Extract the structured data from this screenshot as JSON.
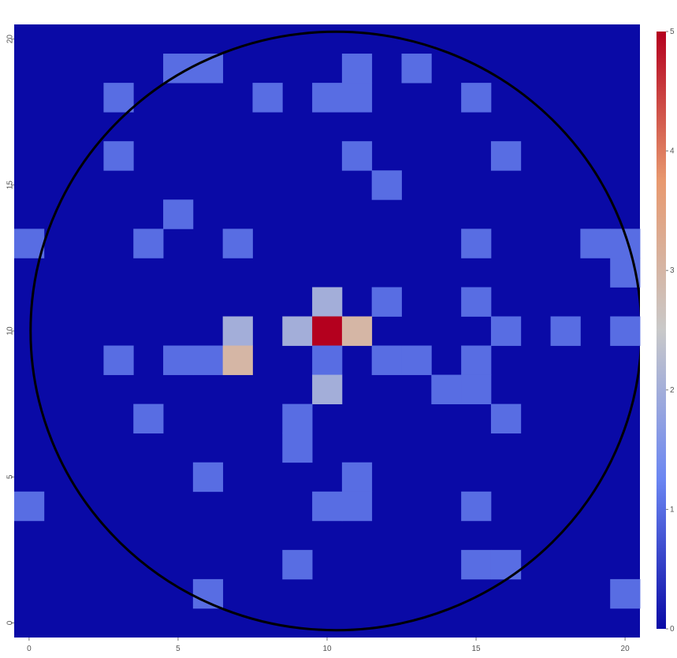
{
  "chart_data": {
    "type": "heatmap",
    "title": "",
    "xlabel": "",
    "ylabel": "",
    "x_range": [
      -0.5,
      20.5
    ],
    "y_range": [
      -0.5,
      20.5
    ],
    "x_ticks": [
      0,
      5,
      10,
      15,
      20
    ],
    "y_ticks": [
      0,
      5,
      10,
      15,
      20
    ],
    "x_tick_labels": [
      "0",
      "5",
      "10",
      "15",
      "20"
    ],
    "y_tick_labels": [
      "0",
      "5",
      "10",
      "15",
      "20"
    ],
    "grid": false,
    "colorscale": [
      "#0a0aa6",
      "#6b86f2",
      "#c9c9c9",
      "#e8996f",
      "#b4001e"
    ],
    "colorbar": {
      "range": [
        0,
        5
      ],
      "ticks": [
        0,
        1,
        2,
        3,
        4,
        5
      ],
      "tick_labels": [
        "0",
        "1",
        "2",
        "3",
        "4",
        "5"
      ],
      "placement": "right"
    },
    "circle": {
      "center_x": 10.3,
      "center_y": 10,
      "radius": 10.25,
      "color": "#000000"
    },
    "cells": [
      [
        5,
        19,
        1
      ],
      [
        6,
        19,
        1
      ],
      [
        11,
        19,
        1
      ],
      [
        13,
        19,
        1
      ],
      [
        3,
        18,
        1
      ],
      [
        8,
        18,
        1
      ],
      [
        10,
        18,
        1
      ],
      [
        11,
        18,
        1
      ],
      [
        15,
        18,
        1
      ],
      [
        3,
        16,
        1
      ],
      [
        11,
        16,
        1
      ],
      [
        16,
        16,
        1
      ],
      [
        12,
        15,
        1
      ],
      [
        5,
        14,
        1
      ],
      [
        0,
        13,
        1
      ],
      [
        4,
        13,
        1
      ],
      [
        7,
        13,
        1
      ],
      [
        15,
        13,
        1
      ],
      [
        19,
        13,
        1
      ],
      [
        20,
        13,
        1
      ],
      [
        20,
        12,
        1
      ],
      [
        10,
        11,
        2
      ],
      [
        12,
        11,
        1
      ],
      [
        15,
        11,
        1
      ],
      [
        7,
        10,
        2
      ],
      [
        9,
        10,
        2
      ],
      [
        10,
        10,
        5
      ],
      [
        11,
        10,
        3
      ],
      [
        16,
        10,
        1
      ],
      [
        18,
        10,
        1
      ],
      [
        20,
        10,
        1
      ],
      [
        3,
        9,
        1
      ],
      [
        5,
        9,
        1
      ],
      [
        6,
        9,
        1
      ],
      [
        7,
        9,
        3
      ],
      [
        10,
        9,
        1
      ],
      [
        12,
        9,
        1
      ],
      [
        13,
        9,
        1
      ],
      [
        15,
        9,
        1
      ],
      [
        10,
        8,
        2
      ],
      [
        14,
        8,
        1
      ],
      [
        15,
        8,
        1
      ],
      [
        4,
        7,
        1
      ],
      [
        9,
        7,
        1
      ],
      [
        16,
        7,
        1
      ],
      [
        9,
        6,
        1
      ],
      [
        6,
        5,
        1
      ],
      [
        11,
        5,
        1
      ],
      [
        0,
        4,
        1
      ],
      [
        10,
        4,
        1
      ],
      [
        11,
        4,
        1
      ],
      [
        15,
        4,
        1
      ],
      [
        9,
        2,
        1
      ],
      [
        15,
        2,
        1
      ],
      [
        16,
        2,
        1
      ],
      [
        6,
        1,
        1
      ],
      [
        20,
        1,
        1
      ]
    ]
  }
}
